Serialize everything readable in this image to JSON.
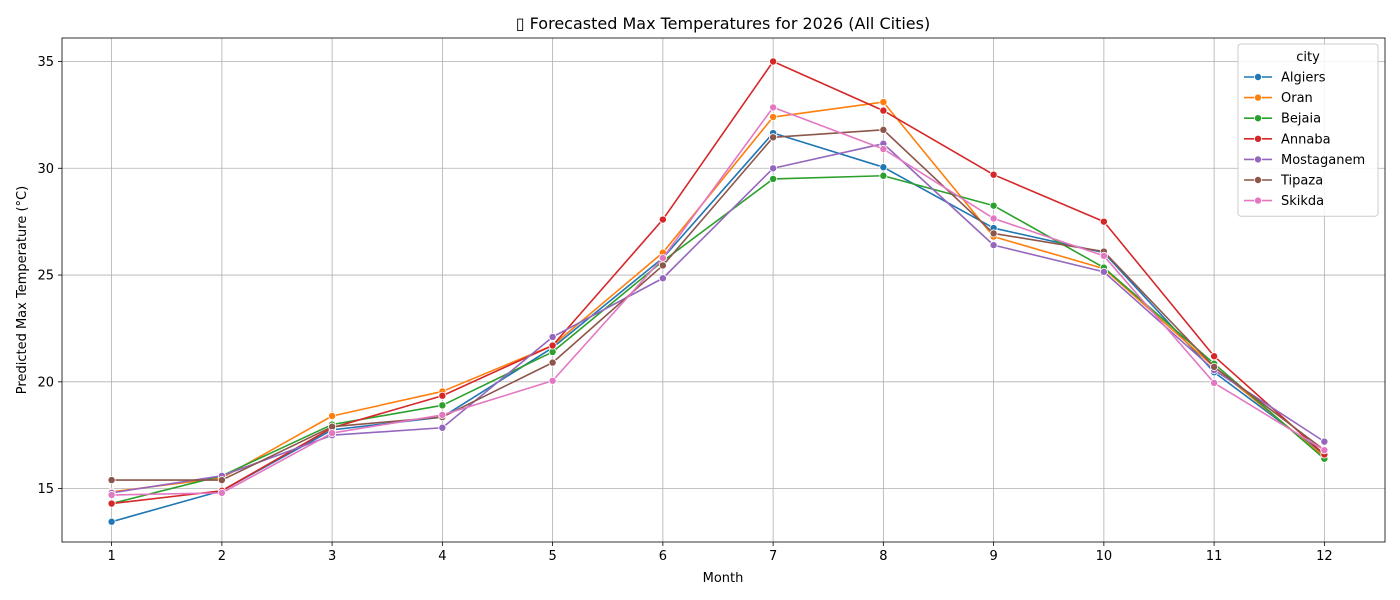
{
  "chart_data": {
    "type": "line",
    "title": "▯ Forecasted Max Temperatures for 2026 (All Cities)",
    "xlabel": "Month",
    "ylabel": "Predicted Max Temperature (°C)",
    "x": [
      1,
      2,
      3,
      4,
      5,
      6,
      7,
      8,
      9,
      10,
      11,
      12
    ],
    "xlim": [
      0.55,
      12.55
    ],
    "ylim": [
      12.5,
      36.1
    ],
    "yticks": [
      15,
      20,
      25,
      30,
      35
    ],
    "grid": true,
    "legend": {
      "title": "city",
      "placement": "top-right"
    },
    "series": [
      {
        "name": "Algiers",
        "color": "#1f77b4",
        "values": [
          13.45,
          14.9,
          17.75,
          18.35,
          21.6,
          25.8,
          31.65,
          30.05,
          27.2,
          26.05,
          20.45,
          16.6
        ]
      },
      {
        "name": "Oran",
        "color": "#ff7f0e",
        "values": [
          14.85,
          15.5,
          18.4,
          19.55,
          21.7,
          26.05,
          32.4,
          33.1,
          26.8,
          25.3,
          20.7,
          16.5
        ]
      },
      {
        "name": "Bejaia",
        "color": "#2ca02c",
        "values": [
          14.3,
          15.6,
          18.0,
          18.9,
          21.4,
          25.65,
          29.5,
          29.65,
          28.25,
          25.35,
          20.85,
          16.4
        ]
      },
      {
        "name": "Annaba",
        "color": "#d62728",
        "values": [
          14.3,
          14.9,
          17.85,
          19.35,
          21.7,
          27.6,
          35.0,
          32.7,
          29.7,
          27.5,
          21.2,
          16.6
        ]
      },
      {
        "name": "Mostaganem",
        "color": "#9467bd",
        "values": [
          14.8,
          15.6,
          17.5,
          17.85,
          22.1,
          24.85,
          30.0,
          31.15,
          26.4,
          25.15,
          20.55,
          17.2
        ]
      },
      {
        "name": "Tipaza",
        "color": "#8c564b",
        "values": [
          15.4,
          15.4,
          17.9,
          18.35,
          20.9,
          25.45,
          31.45,
          31.8,
          26.95,
          26.1,
          20.7,
          16.8
        ]
      },
      {
        "name": "Skikda",
        "color": "#e377c2",
        "values": [
          14.7,
          14.8,
          17.6,
          18.45,
          20.05,
          25.8,
          32.85,
          30.9,
          27.65,
          25.9,
          19.95,
          16.8
        ]
      }
    ]
  }
}
